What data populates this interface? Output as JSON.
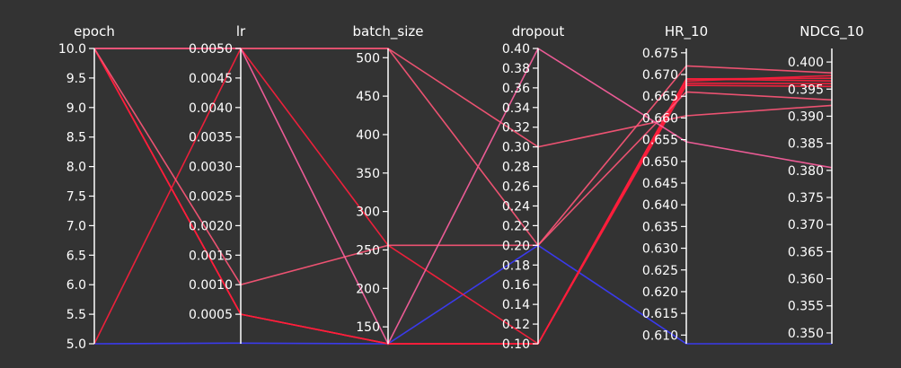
{
  "chart_data": {
    "type": "parallel_coordinates",
    "background": "#333333",
    "axes": [
      {
        "name": "epoch",
        "range": [
          5.0,
          10.0
        ],
        "ticks": [
          "5.0",
          "5.5",
          "6.0",
          "6.5",
          "7.0",
          "7.5",
          "8.0",
          "8.5",
          "9.0",
          "9.5",
          "10.0"
        ]
      },
      {
        "name": "lr",
        "range": [
          0.0,
          0.005
        ],
        "ticks": [
          "0.0005",
          "0.0010",
          "0.0015",
          "0.0020",
          "0.0025",
          "0.0030",
          "0.0035",
          "0.0040",
          "0.0045",
          "0.0050"
        ]
      },
      {
        "name": "batch_size",
        "range": [
          128,
          512
        ],
        "ticks": [
          "150",
          "200",
          "250",
          "300",
          "350",
          "400",
          "450",
          "500"
        ]
      },
      {
        "name": "dropout",
        "range": [
          0.1,
          0.4
        ],
        "ticks": [
          "0.10",
          "0.12",
          "0.14",
          "0.16",
          "0.18",
          "0.20",
          "0.22",
          "0.24",
          "0.26",
          "0.28",
          "0.30",
          "0.32",
          "0.34",
          "0.36",
          "0.38",
          "0.40"
        ]
      },
      {
        "name": "HR_10",
        "range": [
          0.608,
          0.676
        ],
        "ticks": [
          "0.610",
          "0.615",
          "0.620",
          "0.625",
          "0.630",
          "0.635",
          "0.640",
          "0.645",
          "0.650",
          "0.655",
          "0.660",
          "0.665",
          "0.670",
          "0.675"
        ]
      },
      {
        "name": "NDCG_10",
        "range": [
          0.348,
          0.4025
        ],
        "ticks": [
          "0.350",
          "0.355",
          "0.360",
          "0.365",
          "0.370",
          "0.375",
          "0.380",
          "0.385",
          "0.390",
          "0.395",
          "0.400"
        ]
      }
    ],
    "lines": [
      {
        "values": [
          5,
          1e-05,
          128,
          0.2,
          0.608,
          0.348
        ],
        "color": "#3b3bff"
      },
      {
        "values": [
          10,
          0.0005,
          128,
          0.1,
          0.6685,
          0.3975
        ],
        "color": "#ff1e3c"
      },
      {
        "values": [
          10,
          0.0005,
          128,
          0.1,
          0.669,
          0.397
        ],
        "color": "#ff1e3c"
      },
      {
        "values": [
          10,
          0.0005,
          128,
          0.1,
          0.668,
          0.396
        ],
        "color": "#ff1e3c"
      },
      {
        "values": [
          10,
          0.0005,
          128,
          0.1,
          0.6675,
          0.3955
        ],
        "color": "#ff1e3c"
      },
      {
        "values": [
          5,
          0.005,
          256,
          0.1,
          0.669,
          0.3965
        ],
        "color": "#ff1e3c"
      },
      {
        "values": [
          10,
          0.001,
          256,
          0.2,
          0.666,
          0.393
        ],
        "color": "#ff5578"
      },
      {
        "values": [
          10,
          0.005,
          512,
          0.3,
          0.6605,
          0.392
        ],
        "color": "#ff5578"
      },
      {
        "values": [
          10,
          0.005,
          128,
          0.4,
          0.6545,
          0.3805
        ],
        "color": "#ff5fa0"
      },
      {
        "values": [
          10,
          0.005,
          512,
          0.2,
          0.672,
          0.398
        ],
        "color": "#ff5578"
      }
    ]
  }
}
